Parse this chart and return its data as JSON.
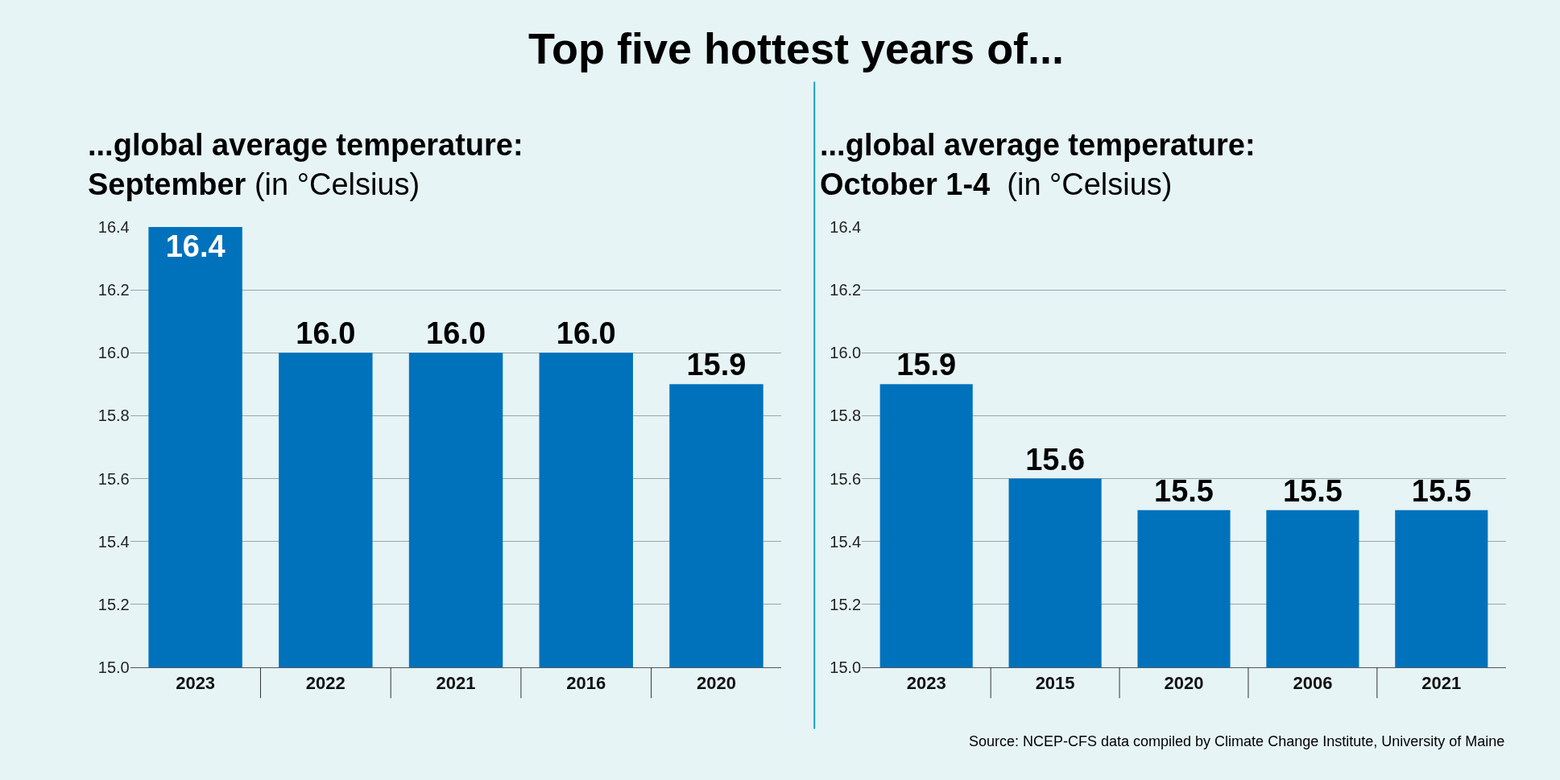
{
  "chart_data": [
    {
      "type": "bar",
      "title": "Top five hottest years of...",
      "subtitle": "...global average temperature:\nSeptember (in °Celsius)",
      "categories": [
        "2023",
        "2022",
        "2021",
        "2016",
        "2020"
      ],
      "values": [
        16.4,
        16.0,
        16.0,
        16.0,
        15.9
      ],
      "value_labels": [
        "16.4",
        "16.0",
        "16.0",
        "16.0",
        "15.9"
      ],
      "color": "#0072bc",
      "ylim": [
        15.0,
        16.4
      ],
      "yticks": [
        {
          "value": 15.0,
          "label": "15.0"
        },
        {
          "value": 15.2,
          "label": "15.2"
        },
        {
          "value": 15.4,
          "label": "15.4"
        },
        {
          "value": 15.6,
          "label": "15.6"
        },
        {
          "value": 15.8,
          "label": "15.8"
        },
        {
          "value": 16.0,
          "label": "16.0"
        },
        {
          "value": 16.2,
          "label": "16.2"
        },
        {
          "value": 16.4,
          "label": "16.4"
        }
      ],
      "grid": "y"
    },
    {
      "type": "bar",
      "subtitle": "...global average temperature:\nOctober 1-4  (in °Celsius)",
      "categories": [
        "2023",
        "2015",
        "2020",
        "2006",
        "2021"
      ],
      "values": [
        15.9,
        15.6,
        15.5,
        15.5,
        15.5
      ],
      "value_labels": [
        "15.9",
        "15.6",
        "15.5",
        "15.5",
        "15.5"
      ],
      "color": "#0072bc",
      "ylim": [
        15.0,
        16.4
      ],
      "yticks": [
        {
          "value": 15.0,
          "label": "15.0"
        },
        {
          "value": 15.2,
          "label": "15.2"
        },
        {
          "value": 15.4,
          "label": "15.4"
        },
        {
          "value": 15.6,
          "label": "15.6"
        },
        {
          "value": 15.8,
          "label": "15.8"
        },
        {
          "value": 16.0,
          "label": "16.0"
        },
        {
          "value": 16.2,
          "label": "16.2"
        },
        {
          "value": 16.4,
          "label": "16.4"
        }
      ],
      "grid": "y",
      "annotations": [
        "Source: NCEP-CFS data compiled by Climate Change Institute, University of Maine"
      ]
    }
  ]
}
